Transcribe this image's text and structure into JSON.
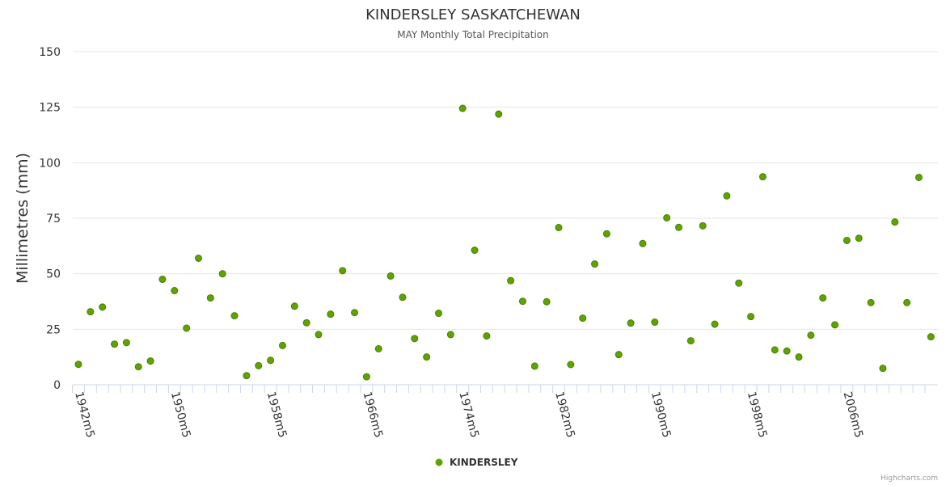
{
  "chart_data": {
    "type": "scatter",
    "title": "KINDERSLEY SASKATCHEWAN",
    "subtitle": "MAY Monthly Total Precipitation",
    "xlabel": "",
    "ylabel": "Millimetres (mm)",
    "ylim": [
      0,
      150
    ],
    "yticks": [
      "0",
      "25",
      "50",
      "75",
      "100",
      "125",
      "150"
    ],
    "xtick_labels": [
      "1942m5",
      "1950m5",
      "1958m5",
      "1966m5",
      "1974m5",
      "1982m5",
      "1990m5",
      "1998m5",
      "2006m5"
    ],
    "x_start_year": 1942,
    "x_end_year": 2013,
    "grid": true,
    "legend_position": "bottom-center",
    "color": "#5fa300",
    "series": [
      {
        "name": "KINDERSLEY",
        "x": [
          "1942m5",
          "1943m5",
          "1944m5",
          "1945m5",
          "1946m5",
          "1947m5",
          "1948m5",
          "1949m5",
          "1950m5",
          "1951m5",
          "1952m5",
          "1953m5",
          "1954m5",
          "1955m5",
          "1956m5",
          "1957m5",
          "1958m5",
          "1959m5",
          "1960m5",
          "1961m5",
          "1962m5",
          "1963m5",
          "1964m5",
          "1965m5",
          "1966m5",
          "1967m5",
          "1968m5",
          "1969m5",
          "1970m5",
          "1971m5",
          "1972m5",
          "1973m5",
          "1974m5",
          "1975m5",
          "1976m5",
          "1977m5",
          "1978m5",
          "1979m5",
          "1980m5",
          "1981m5",
          "1982m5",
          "1983m5",
          "1984m5",
          "1985m5",
          "1986m5",
          "1987m5",
          "1988m5",
          "1989m5",
          "1990m5",
          "1991m5",
          "1992m5",
          "1993m5",
          "1994m5",
          "1995m5",
          "1996m5",
          "1997m5",
          "1998m5",
          "1999m5",
          "2000m5",
          "2001m5",
          "2002m5",
          "2003m5",
          "2004m5",
          "2005m5",
          "2006m5",
          "2007m5",
          "2008m5",
          "2009m5",
          "2010m5",
          "2011m5",
          "2012m5",
          "2013m5"
        ],
        "values": [
          9.2,
          32.9,
          35.0,
          18.3,
          19.0,
          8.1,
          10.7,
          47.5,
          42.4,
          25.5,
          57.0,
          39.1,
          50.0,
          31.1,
          4.1,
          8.6,
          11.0,
          17.7,
          35.4,
          27.9,
          22.6,
          31.8,
          51.4,
          32.5,
          3.6,
          16.2,
          49.0,
          39.4,
          20.8,
          12.5,
          32.2,
          22.6,
          124.5,
          60.6,
          22.0,
          121.9,
          46.9,
          37.6,
          8.4,
          37.4,
          70.8,
          9.1,
          30.0,
          54.4,
          68.0,
          13.6,
          27.8,
          63.6,
          28.2,
          75.2,
          70.9,
          19.8,
          71.6,
          27.3,
          85.1,
          45.8,
          30.7,
          93.7,
          15.7,
          15.2,
          12.5,
          22.3,
          39.1,
          27.0,
          65.0,
          66.0,
          37.0,
          7.4,
          73.3,
          37.0,
          93.4,
          21.6
        ]
      }
    ]
  },
  "credits": "Highcharts.com"
}
